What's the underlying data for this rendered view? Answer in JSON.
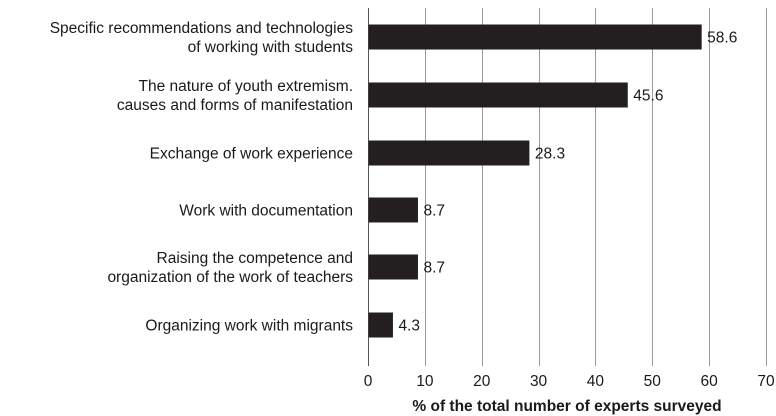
{
  "chart_data": {
    "type": "bar",
    "orientation": "horizontal",
    "categories": [
      [
        "Specific recommendations and technologies",
        "of working with students"
      ],
      [
        "The nature of youth extremism.",
        "causes and forms of manifestation"
      ],
      [
        "Exchange of work experience"
      ],
      [
        "Work with documentation"
      ],
      [
        "Raising the competence and",
        "organization of the work of teachers"
      ],
      [
        "Organizing work with migrants"
      ]
    ],
    "values": [
      58.6,
      45.6,
      28.3,
      8.7,
      8.7,
      4.3
    ],
    "value_labels": [
      "58.6",
      "45.6",
      "28.3",
      "8.7",
      "8.7",
      "4.3"
    ],
    "xlabel": "% of the total number of experts surveyed",
    "xlim": [
      0,
      70
    ],
    "xticks": [
      0,
      10,
      20,
      30,
      40,
      50,
      60,
      70
    ],
    "grid": "vertical",
    "bar_color": "#231f20",
    "grid_color": "#9a9a9a"
  }
}
